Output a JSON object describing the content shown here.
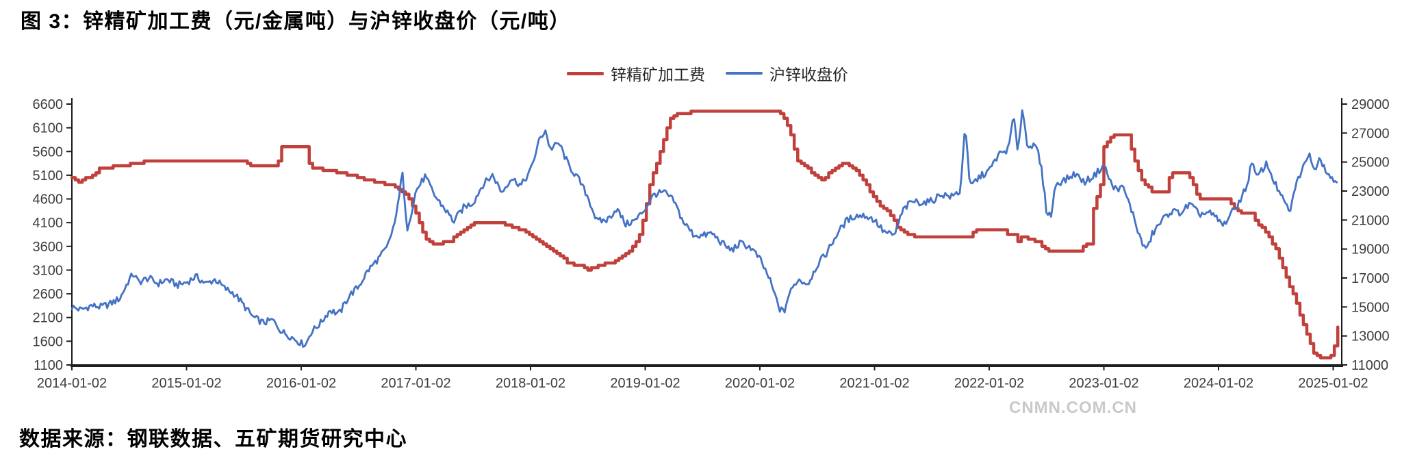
{
  "page": {
    "title": "图 3：锌精矿加工费（元/金属吨）与沪锌收盘价（元/吨）",
    "source_note": "数据来源：钢联数据、五矿期货研究中心",
    "watermark": "CNMN.COM.CN"
  },
  "chart_data": {
    "type": "line",
    "title": "锌精矿加工费（元/金属吨）与沪锌收盘价（元/吨）",
    "legend_position": "top-center",
    "grid": false,
    "x_axis": {
      "tick_labels": [
        "2014-01-02",
        "2015-01-02",
        "2016-01-02",
        "2017-01-02",
        "2018-01-02",
        "2019-01-02",
        "2020-01-02",
        "2021-01-02",
        "2022-01-02",
        "2023-01-02",
        "2024-01-02",
        "2025-01-02"
      ]
    },
    "left_axis": {
      "min": 1100,
      "max": 6600,
      "step": 500,
      "tick_labels": [
        "6600",
        "6100",
        "5600",
        "5100",
        "4600",
        "4100",
        "3600",
        "3100",
        "2600",
        "2100",
        "1600",
        "1100"
      ]
    },
    "right_axis": {
      "min": 11000,
      "max": 29000,
      "step": 2000,
      "tick_labels": [
        "29000",
        "27000",
        "25000",
        "23000",
        "21000",
        "19000",
        "17000",
        "15000",
        "13000",
        "11000"
      ]
    },
    "series": [
      {
        "name": "锌精矿加工费",
        "axis": "left",
        "color": "#c0413c",
        "line_style": "step",
        "points": [
          [
            2014.0,
            5050
          ],
          [
            2014.06,
            4950
          ],
          [
            2014.17,
            5100
          ],
          [
            2014.25,
            5250
          ],
          [
            2014.42,
            5300
          ],
          [
            2014.67,
            5400
          ],
          [
            2015.5,
            5400
          ],
          [
            2015.54,
            5300
          ],
          [
            2015.79,
            5300
          ],
          [
            2015.83,
            5700
          ],
          [
            2016.04,
            5700
          ],
          [
            2016.08,
            5250
          ],
          [
            2016.25,
            5200
          ],
          [
            2016.33,
            5150
          ],
          [
            2016.42,
            5100
          ],
          [
            2016.5,
            5050
          ],
          [
            2016.58,
            5000
          ],
          [
            2016.67,
            4950
          ],
          [
            2016.75,
            4900
          ],
          [
            2016.83,
            4850
          ],
          [
            2016.92,
            4700
          ],
          [
            2017.0,
            4300
          ],
          [
            2017.08,
            3750
          ],
          [
            2017.17,
            3650
          ],
          [
            2017.29,
            3700
          ],
          [
            2017.38,
            3900
          ],
          [
            2017.5,
            4100
          ],
          [
            2017.71,
            4100
          ],
          [
            2017.79,
            4050
          ],
          [
            2017.92,
            3950
          ],
          [
            2018.0,
            3850
          ],
          [
            2018.08,
            3700
          ],
          [
            2018.17,
            3550
          ],
          [
            2018.25,
            3400
          ],
          [
            2018.33,
            3250
          ],
          [
            2018.42,
            3200
          ],
          [
            2018.5,
            3100
          ],
          [
            2018.58,
            3200
          ],
          [
            2018.71,
            3250
          ],
          [
            2018.79,
            3400
          ],
          [
            2018.88,
            3550
          ],
          [
            2018.96,
            3900
          ],
          [
            2019.04,
            4900
          ],
          [
            2019.13,
            5600
          ],
          [
            2019.21,
            6300
          ],
          [
            2019.29,
            6400
          ],
          [
            2019.46,
            6450
          ],
          [
            2020.17,
            6450
          ],
          [
            2020.25,
            6100
          ],
          [
            2020.33,
            5400
          ],
          [
            2020.46,
            5150
          ],
          [
            2020.54,
            5000
          ],
          [
            2020.63,
            5200
          ],
          [
            2020.71,
            5350
          ],
          [
            2020.79,
            5300
          ],
          [
            2020.88,
            5100
          ],
          [
            2020.96,
            4750
          ],
          [
            2021.04,
            4450
          ],
          [
            2021.13,
            4300
          ],
          [
            2021.21,
            3950
          ],
          [
            2021.29,
            3850
          ],
          [
            2021.38,
            3800
          ],
          [
            2021.83,
            3800
          ],
          [
            2021.88,
            3950
          ],
          [
            2022.13,
            3950
          ],
          [
            2022.17,
            3800
          ],
          [
            2022.21,
            3900
          ],
          [
            2022.25,
            3700
          ],
          [
            2022.29,
            3850
          ],
          [
            2022.33,
            3750
          ],
          [
            2022.42,
            3700
          ],
          [
            2022.5,
            3500
          ],
          [
            2022.79,
            3500
          ],
          [
            2022.83,
            3650
          ],
          [
            2022.88,
            3650
          ],
          [
            2022.92,
            4650
          ],
          [
            2022.96,
            4650
          ],
          [
            2023.0,
            5700
          ],
          [
            2023.08,
            5950
          ],
          [
            2023.21,
            5950
          ],
          [
            2023.25,
            5550
          ],
          [
            2023.33,
            5000
          ],
          [
            2023.42,
            4750
          ],
          [
            2023.54,
            4750
          ],
          [
            2023.58,
            5150
          ],
          [
            2023.71,
            5150
          ],
          [
            2023.75,
            5050
          ],
          [
            2023.83,
            4600
          ],
          [
            2024.08,
            4600
          ],
          [
            2024.13,
            4400
          ],
          [
            2024.21,
            4300
          ],
          [
            2024.29,
            4300
          ],
          [
            2024.33,
            4100
          ],
          [
            2024.42,
            3900
          ],
          [
            2024.5,
            3530
          ],
          [
            2024.58,
            3000
          ],
          [
            2024.67,
            2460
          ],
          [
            2024.75,
            1880
          ],
          [
            2024.83,
            1350
          ],
          [
            2024.88,
            1250
          ],
          [
            2024.96,
            1250
          ],
          [
            2025.0,
            1400
          ],
          [
            2025.02,
            1650
          ],
          [
            2025.04,
            1900
          ],
          [
            2025.06,
            1900
          ]
        ]
      },
      {
        "name": "沪锌收盘价",
        "axis": "right",
        "color": "#4472c4",
        "line_style": "line",
        "points": [
          [
            2014.0,
            15000
          ],
          [
            2014.08,
            14800
          ],
          [
            2014.17,
            15100
          ],
          [
            2014.25,
            15000
          ],
          [
            2014.33,
            15200
          ],
          [
            2014.42,
            15600
          ],
          [
            2014.5,
            16900
          ],
          [
            2014.54,
            17300
          ],
          [
            2014.58,
            16700
          ],
          [
            2014.67,
            17000
          ],
          [
            2014.75,
            16600
          ],
          [
            2014.83,
            16900
          ],
          [
            2014.92,
            16500
          ],
          [
            2015.0,
            16700
          ],
          [
            2015.08,
            17100
          ],
          [
            2015.17,
            16600
          ],
          [
            2015.25,
            16900
          ],
          [
            2015.33,
            16300
          ],
          [
            2015.42,
            15900
          ],
          [
            2015.5,
            15100
          ],
          [
            2015.58,
            14300
          ],
          [
            2015.67,
            13900
          ],
          [
            2015.75,
            14100
          ],
          [
            2015.83,
            13300
          ],
          [
            2015.92,
            12900
          ],
          [
            2016.0,
            12500
          ],
          [
            2016.04,
            12400
          ],
          [
            2016.08,
            13200
          ],
          [
            2016.17,
            13900
          ],
          [
            2016.25,
            14800
          ],
          [
            2016.33,
            14500
          ],
          [
            2016.42,
            15800
          ],
          [
            2016.5,
            16400
          ],
          [
            2016.58,
            17500
          ],
          [
            2016.67,
            18300
          ],
          [
            2016.75,
            19100
          ],
          [
            2016.83,
            21200
          ],
          [
            2016.88,
            24500
          ],
          [
            2016.92,
            20300
          ],
          [
            2016.96,
            21500
          ],
          [
            2017.0,
            23000
          ],
          [
            2017.08,
            24000
          ],
          [
            2017.17,
            22600
          ],
          [
            2017.25,
            21800
          ],
          [
            2017.33,
            20900
          ],
          [
            2017.42,
            21900
          ],
          [
            2017.5,
            22200
          ],
          [
            2017.58,
            23400
          ],
          [
            2017.67,
            24100
          ],
          [
            2017.75,
            22900
          ],
          [
            2017.83,
            23900
          ],
          [
            2017.92,
            23400
          ],
          [
            2018.0,
            24400
          ],
          [
            2018.08,
            26600
          ],
          [
            2018.13,
            27200
          ],
          [
            2018.17,
            25900
          ],
          [
            2018.25,
            26300
          ],
          [
            2018.33,
            24800
          ],
          [
            2018.42,
            23800
          ],
          [
            2018.5,
            22600
          ],
          [
            2018.58,
            20900
          ],
          [
            2018.67,
            21000
          ],
          [
            2018.75,
            21800
          ],
          [
            2018.83,
            20700
          ],
          [
            2018.92,
            21000
          ],
          [
            2019.0,
            21800
          ],
          [
            2019.08,
            22800
          ],
          [
            2019.17,
            22900
          ],
          [
            2019.25,
            22300
          ],
          [
            2019.33,
            20900
          ],
          [
            2019.42,
            20000
          ],
          [
            2019.5,
            19900
          ],
          [
            2019.58,
            20100
          ],
          [
            2019.67,
            19400
          ],
          [
            2019.75,
            18900
          ],
          [
            2019.83,
            19400
          ],
          [
            2019.92,
            19100
          ],
          [
            2020.0,
            18300
          ],
          [
            2020.08,
            17000
          ],
          [
            2020.17,
            14900
          ],
          [
            2020.21,
            14600
          ],
          [
            2020.25,
            15800
          ],
          [
            2020.33,
            16900
          ],
          [
            2020.42,
            16600
          ],
          [
            2020.5,
            17900
          ],
          [
            2020.58,
            18700
          ],
          [
            2020.67,
            20000
          ],
          [
            2020.75,
            20900
          ],
          [
            2020.83,
            21300
          ],
          [
            2020.92,
            21300
          ],
          [
            2021.0,
            21000
          ],
          [
            2021.08,
            20200
          ],
          [
            2021.17,
            19900
          ],
          [
            2021.25,
            21700
          ],
          [
            2021.33,
            22300
          ],
          [
            2021.42,
            22200
          ],
          [
            2021.5,
            22300
          ],
          [
            2021.58,
            22800
          ],
          [
            2021.67,
            22600
          ],
          [
            2021.75,
            23000
          ],
          [
            2021.79,
            27800
          ],
          [
            2021.83,
            23300
          ],
          [
            2021.92,
            24000
          ],
          [
            2022.0,
            24400
          ],
          [
            2022.08,
            25500
          ],
          [
            2022.17,
            25900
          ],
          [
            2022.21,
            28200
          ],
          [
            2022.25,
            25800
          ],
          [
            2022.29,
            28700
          ],
          [
            2022.33,
            26300
          ],
          [
            2022.42,
            25900
          ],
          [
            2022.46,
            24300
          ],
          [
            2022.5,
            21600
          ],
          [
            2022.54,
            21300
          ],
          [
            2022.58,
            23500
          ],
          [
            2022.67,
            23800
          ],
          [
            2022.75,
            24200
          ],
          [
            2022.83,
            23600
          ],
          [
            2022.92,
            24100
          ],
          [
            2023.0,
            24800
          ],
          [
            2023.08,
            23200
          ],
          [
            2023.17,
            23200
          ],
          [
            2023.25,
            21500
          ],
          [
            2023.33,
            19400
          ],
          [
            2023.38,
            19000
          ],
          [
            2023.42,
            20000
          ],
          [
            2023.5,
            20900
          ],
          [
            2023.58,
            21600
          ],
          [
            2023.67,
            21500
          ],
          [
            2023.75,
            22100
          ],
          [
            2023.83,
            21400
          ],
          [
            2023.92,
            21500
          ],
          [
            2024.0,
            21000
          ],
          [
            2024.04,
            20600
          ],
          [
            2024.08,
            21100
          ],
          [
            2024.17,
            22100
          ],
          [
            2024.25,
            23400
          ],
          [
            2024.29,
            25100
          ],
          [
            2024.33,
            23900
          ],
          [
            2024.42,
            24900
          ],
          [
            2024.5,
            23400
          ],
          [
            2024.58,
            22100
          ],
          [
            2024.63,
            21600
          ],
          [
            2024.67,
            23400
          ],
          [
            2024.75,
            24800
          ],
          [
            2024.79,
            25800
          ],
          [
            2024.83,
            24300
          ],
          [
            2024.88,
            25400
          ],
          [
            2024.92,
            24700
          ],
          [
            2025.0,
            23700
          ],
          [
            2025.04,
            23700
          ]
        ]
      }
    ]
  }
}
